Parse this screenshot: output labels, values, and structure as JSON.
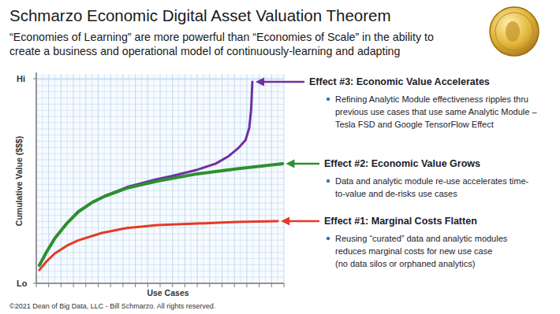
{
  "chart_data": {
    "type": "line",
    "title": "Schmarzo Economic Digital Asset Valuation Theorem",
    "subtitle": [
      "“Economies of Learning” are more powerful than “Economies of Scale” in the ability to",
      "create a business and operational model of continuously-learning and adapting"
    ],
    "x_label": "Use Cases",
    "y_label": "Cumulative Value ($$$)",
    "footer": "©2021 Dean of Big Data, LLC - Bill Schmarzo. All rights reserved.",
    "xlim": [
      0,
      20
    ],
    "xticks": [
      0,
      1,
      2,
      3,
      4,
      5,
      6,
      7,
      8,
      9,
      10,
      11,
      12,
      13,
      14,
      15,
      16,
      17,
      18,
      19,
      20
    ],
    "ylim": [
      0,
      100
    ],
    "yticks": [
      {
        "value": 0,
        "label": "Lo"
      },
      {
        "value": 100,
        "label": "Hi"
      }
    ],
    "tick_labels": "y",
    "grid": true,
    "series": [
      {
        "name": "Effect #1: Marginal Costs Flatten",
        "color": "#e53a26",
        "description": [
          "Reusing “curated” data and analytic modules",
          "reduces marginal costs for new use case",
          "(no data silos or orphaned analytics)"
        ],
        "x": [
          0.25,
          0.8,
          1.5,
          2.5,
          3.4,
          5.3,
          7.3,
          9.8,
          13,
          16.2,
          19.5
        ],
        "values": [
          6.5,
          10.5,
          14.6,
          18.5,
          21,
          24.6,
          27,
          28.5,
          29.2,
          30,
          30.4
        ]
      },
      {
        "name": "Effect #2: Economic Value Grows",
        "color": "#2f8f2f",
        "description": [
          "Data and analytic module re-use accelerates time-",
          "to-value and de-risks use cases"
        ],
        "x": [
          0.25,
          0.8,
          1.5,
          2.5,
          3.4,
          4.5,
          5.5,
          7.3,
          9.8,
          13,
          16.2,
          19.9
        ],
        "values": [
          8.8,
          15,
          22,
          29.5,
          35,
          39.5,
          42.5,
          46.5,
          50,
          53.5,
          56,
          58.5
        ]
      },
      {
        "name": "Effect #3: Economic Value Accelerates",
        "color": "#7030a0",
        "description": [
          "Refining Analytic Module effectiveness ripples thru",
          "previous use cases that use same Analytic Module –",
          "Tesla FSD and Google TensorFlow Effect"
        ],
        "x": [
          0.25,
          0.8,
          1.5,
          2.5,
          3.4,
          4.5,
          5.5,
          7.3,
          9.8,
          11,
          13,
          14.5,
          15.5,
          16.3,
          16.9,
          17.2,
          17.35,
          17.45
        ],
        "values": [
          8.8,
          15,
          22,
          29.5,
          35,
          39.5,
          42.5,
          47,
          51,
          52.5,
          55.5,
          58.5,
          62,
          66,
          70,
          76,
          85,
          98.5
        ]
      }
    ]
  }
}
